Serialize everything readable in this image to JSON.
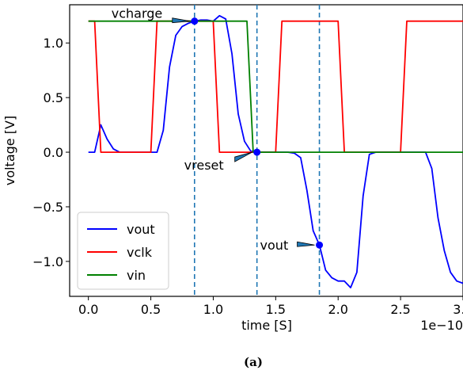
{
  "chart_data": {
    "type": "line",
    "xlabel": "time [S]",
    "ylabel": "voltage [V]",
    "x_offset_label": "1e−10",
    "xlim": [
      -0.15,
      3.0
    ],
    "ylim": [
      -1.32,
      1.35
    ],
    "x_ticks": [
      0.0,
      0.5,
      1.0,
      1.5,
      2.0,
      2.5,
      3.0
    ],
    "x_tick_labels": [
      "0.0",
      "0.5",
      "1.0",
      "1.5",
      "2.0",
      "2.5",
      "3.0"
    ],
    "y_ticks": [
      1.0,
      0.5,
      0.0,
      -0.5,
      -1.0
    ],
    "y_tick_labels": [
      "1.0",
      "0.5",
      "0.0",
      "−0.5",
      "−1.0"
    ],
    "legend_position": "lower-left",
    "series": [
      {
        "name": "vout",
        "color": "#0000ff",
        "x": [
          0.0,
          0.05,
          0.1,
          0.15,
          0.2,
          0.25,
          0.3,
          0.35,
          0.4,
          0.45,
          0.5,
          0.55,
          0.6,
          0.65,
          0.7,
          0.75,
          0.8,
          0.85,
          0.9,
          0.95,
          1.0,
          1.05,
          1.1,
          1.15,
          1.2,
          1.25,
          1.3,
          1.35,
          1.4,
          1.45,
          1.5,
          1.55,
          1.6,
          1.65,
          1.7,
          1.75,
          1.8,
          1.85,
          1.9,
          1.95,
          2.0,
          2.05,
          2.1,
          2.15,
          2.2,
          2.25,
          2.3,
          2.35,
          2.4,
          2.45,
          2.5,
          2.55,
          2.6,
          2.65,
          2.7,
          2.75,
          2.8,
          2.85,
          2.9,
          2.95,
          3.0
        ],
        "y": [
          0.0,
          0.0,
          0.25,
          0.12,
          0.03,
          0.0,
          0.0,
          0.0,
          0.0,
          0.0,
          0.0,
          0.0,
          0.2,
          0.78,
          1.07,
          1.15,
          1.18,
          1.2,
          1.21,
          1.21,
          1.2,
          1.25,
          1.22,
          0.9,
          0.35,
          0.1,
          0.01,
          0.0,
          0.0,
          0.0,
          0.0,
          0.0,
          0.0,
          -0.01,
          -0.05,
          -0.35,
          -0.72,
          -0.85,
          -1.08,
          -1.15,
          -1.18,
          -1.18,
          -1.24,
          -1.1,
          -0.4,
          -0.02,
          0.0,
          0.0,
          0.0,
          0.0,
          0.0,
          0.0,
          0.0,
          0.0,
          0.0,
          -0.15,
          -0.6,
          -0.9,
          -1.1,
          -1.18,
          -1.2
        ]
      },
      {
        "name": "vclk",
        "color": "#ff0000",
        "x": [
          0.0,
          0.05,
          0.1,
          0.5,
          0.55,
          1.0,
          1.05,
          1.5,
          1.55,
          2.0,
          2.05,
          2.5,
          2.55,
          3.0
        ],
        "y": [
          1.2,
          1.2,
          0.0,
          0.0,
          1.2,
          1.2,
          0.0,
          0.0,
          1.2,
          1.2,
          0.0,
          0.0,
          1.2,
          1.2
        ]
      },
      {
        "name": "vin",
        "color": "#008000",
        "x": [
          0.0,
          1.27,
          1.32,
          3.0
        ],
        "y": [
          1.2,
          1.2,
          0.0,
          0.0
        ]
      }
    ],
    "vlines": [
      0.85,
      1.35,
      1.85
    ],
    "markers": [
      {
        "label": "vcharge",
        "x": 0.85,
        "y": 1.2
      },
      {
        "label": "vreset",
        "x": 1.35,
        "y": 0.0
      },
      {
        "label": "vout",
        "x": 1.85,
        "y": -0.85
      }
    ]
  },
  "caption": "(a)"
}
